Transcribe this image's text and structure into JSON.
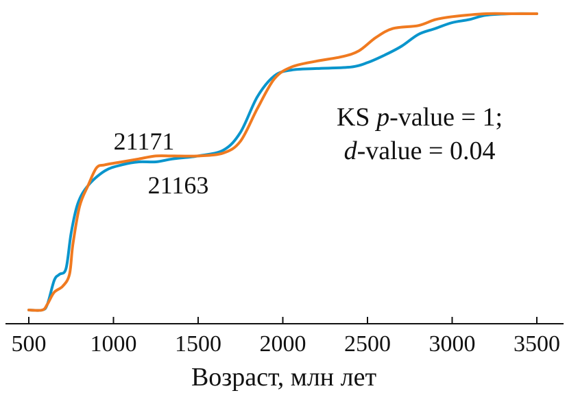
{
  "chart_data": {
    "type": "line",
    "xlabel": "Возраст, млн лет",
    "ylabel": "",
    "title": "",
    "xlim": [
      450,
      3650
    ],
    "ylim": [
      0,
      1
    ],
    "xticks": [
      500,
      1000,
      1500,
      2000,
      2500,
      3000,
      3500
    ],
    "grid": false,
    "annotation": {
      "line1_prefix": "KS ",
      "line1_italic": "p",
      "line1_suffix": "-value = 1;",
      "line2_italic": "d",
      "line2_suffix": "-value = 0.04"
    },
    "series": [
      {
        "name": "21163",
        "color": "#0a95cc",
        "x": [
          500,
          580,
          610,
          650,
          680,
          720,
          750,
          790,
          850,
          950,
          1050,
          1150,
          1250,
          1350,
          1500,
          1650,
          1750,
          1850,
          1950,
          2050,
          2200,
          2400,
          2500,
          2600,
          2700,
          2800,
          2900,
          3000,
          3100,
          3200,
          3350,
          3500
        ],
        "y": [
          0.0,
          0.0,
          0.02,
          0.1,
          0.12,
          0.14,
          0.26,
          0.36,
          0.42,
          0.47,
          0.49,
          0.5,
          0.5,
          0.51,
          0.52,
          0.54,
          0.6,
          0.72,
          0.79,
          0.81,
          0.815,
          0.82,
          0.835,
          0.86,
          0.89,
          0.93,
          0.95,
          0.97,
          0.98,
          0.995,
          1.0,
          1.0
        ]
      },
      {
        "name": "21171",
        "color": "#f07a20",
        "x": [
          500,
          580,
          610,
          650,
          700,
          740,
          760,
          800,
          850,
          900,
          950,
          1050,
          1150,
          1250,
          1350,
          1500,
          1650,
          1750,
          1850,
          1950,
          2050,
          2200,
          2350,
          2450,
          2550,
          2650,
          2800,
          2900,
          3000,
          3200,
          3350,
          3500
        ],
        "y": [
          0.0,
          0.0,
          0.02,
          0.06,
          0.08,
          0.12,
          0.22,
          0.35,
          0.42,
          0.48,
          0.49,
          0.5,
          0.51,
          0.52,
          0.52,
          0.52,
          0.53,
          0.57,
          0.68,
          0.78,
          0.82,
          0.84,
          0.855,
          0.875,
          0.92,
          0.95,
          0.96,
          0.98,
          0.99,
          1.0,
          1.0,
          1.0
        ]
      }
    ]
  }
}
